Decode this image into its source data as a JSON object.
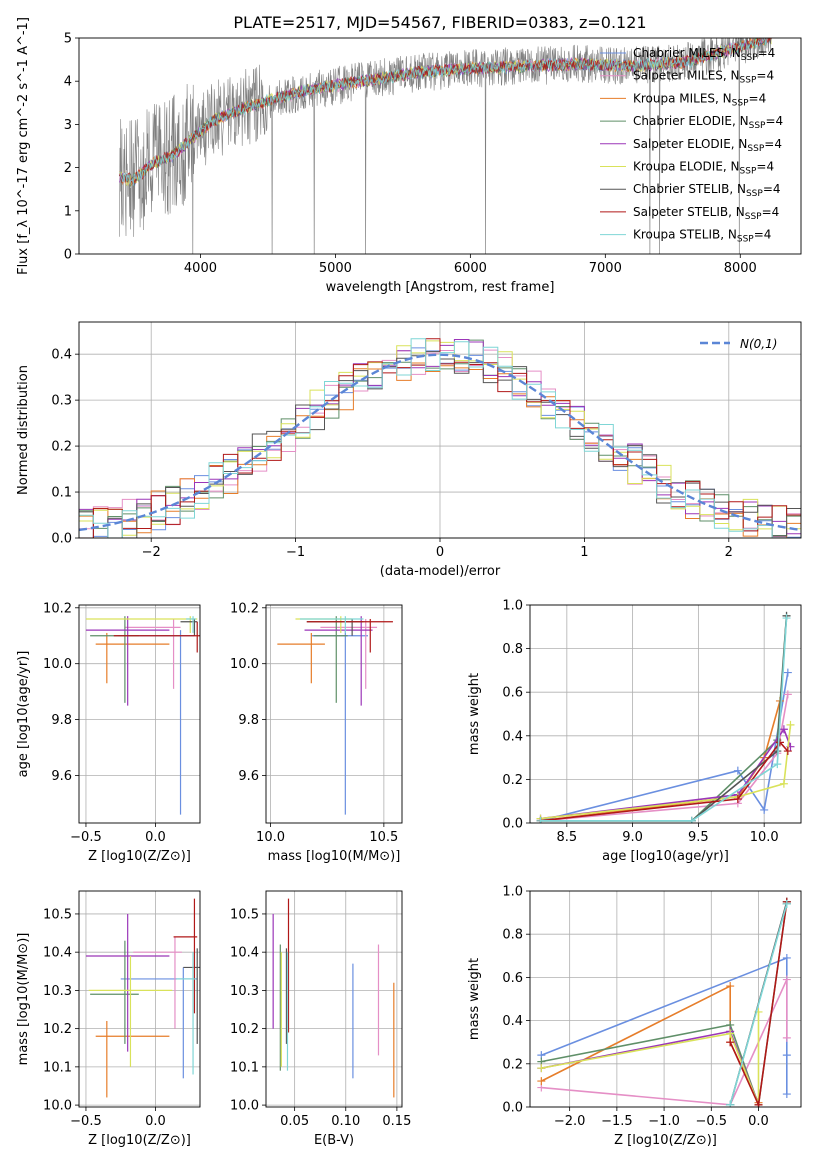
{
  "page_title": "PLATE=2517, MJD=54567, FIBERID=0383, z=0.121",
  "colors": {
    "Chabrier MILES": "#6a8fe0",
    "Salpeter MILES": "#e58fc6",
    "Kroupa MILES": "#e67d2a",
    "Chabrier ELODIE": "#5f8f68",
    "Salpeter ELODIE": "#9b36b8",
    "Kroupa ELODIE": "#d9e25a",
    "Chabrier STELIB": "#555555",
    "Salpeter STELIB": "#b01818",
    "Kroupa STELIB": "#7fd6d6",
    "gauss": "#5b86d6",
    "data": "#808080"
  },
  "chart_data": [
    {
      "type": "line",
      "title": "PLATE=2517, MJD=54567, FIBERID=0383, z=0.121",
      "xlabel": "wavelength [Angstrom, rest frame]",
      "ylabel": "Flux [f_λ 10^-17 erg cm^-2 s^-1 A^-1]",
      "xlim": [
        3100,
        8450
      ],
      "ylim": [
        0,
        5
      ],
      "xticks": [
        4000,
        5000,
        6000,
        7000,
        8000
      ],
      "yticks": [
        0,
        1,
        2,
        3,
        4,
        5
      ],
      "legend": "upper right",
      "series": [
        {
          "name": "Chabrier MILES, N_SSP=4"
        },
        {
          "name": "Salpeter MILES, N_SSP=4"
        },
        {
          "name": "Kroupa MILES, N_SSP=4"
        },
        {
          "name": "Chabrier ELODIE, N_SSP=4"
        },
        {
          "name": "Salpeter ELODIE, N_SSP=4"
        },
        {
          "name": "Kroupa ELODIE, N_SSP=4"
        },
        {
          "name": "Chabrier STELIB, N_SSP=4"
        },
        {
          "name": "Salpeter STELIB, N_SSP=4"
        },
        {
          "name": "Kroupa STELIB, N_SSP=4"
        }
      ],
      "continuum": {
        "x": [
          3400,
          3500,
          3650,
          3800,
          3950,
          4100,
          4300,
          4500,
          4800,
          5200,
          5600,
          6000,
          6400,
          6800,
          7200,
          7600,
          8000,
          8200
        ],
        "y": [
          1.8,
          1.7,
          2.1,
          2.3,
          2.7,
          3.1,
          3.35,
          3.55,
          3.8,
          4.0,
          4.2,
          4.3,
          4.35,
          4.4,
          4.35,
          4.45,
          4.8,
          5.0
        ]
      }
    },
    {
      "type": "step",
      "xlabel": "(data-model)/error",
      "ylabel": "Normed distribution",
      "xlim": [
        -2.5,
        2.5
      ],
      "ylim": [
        0,
        0.47
      ],
      "xticks": [
        -2,
        -1,
        0,
        1,
        2
      ],
      "yticks": [
        0.0,
        0.1,
        0.2,
        0.3,
        0.4
      ],
      "legend": "upper right",
      "gauss_label": "N(0,1)",
      "gauss": {
        "mu": 0,
        "sigma": 1
      }
    },
    {
      "type": "errorbar",
      "xlabel": "Z [log10(Z/Z⊙)]",
      "ylabel": "age  [log10(age/yr)]",
      "xlim": [
        -0.55,
        0.32
      ],
      "ylim": [
        9.43,
        10.21
      ],
      "xticks": [
        -0.5,
        0.0
      ],
      "yticks": [
        9.6,
        9.8,
        10.0,
        10.2
      ],
      "points": [
        {
          "m": "Chabrier MILES",
          "x": 0.18,
          "y": 10.1,
          "xe": [
            0.45,
            0.1
          ],
          "ye": [
            0.64,
            0.02
          ]
        },
        {
          "m": "Salpeter MILES",
          "x": 0.13,
          "y": 10.13,
          "xe": [
            0.35,
            0.05
          ],
          "ye": [
            0.22,
            0.03
          ]
        },
        {
          "m": "Kroupa MILES",
          "x": -0.35,
          "y": 10.07,
          "xe": [
            0.08,
            0.45
          ],
          "ye": [
            0.14,
            0.04
          ]
        },
        {
          "m": "Chabrier ELODIE",
          "x": -0.22,
          "y": 10.1,
          "xe": [
            0.25,
            0.1
          ],
          "ye": [
            0.24,
            0.07
          ]
        },
        {
          "m": "Salpeter ELODIE",
          "x": -0.2,
          "y": 10.12,
          "xe": [
            0.3,
            0.3
          ],
          "ye": [
            0.27,
            0.05
          ]
        },
        {
          "m": "Kroupa ELODIE",
          "x": 0.25,
          "y": 10.16,
          "xe": [
            0.75,
            0.05
          ],
          "ye": [
            0.05,
            0.01
          ]
        },
        {
          "m": "Chabrier STELIB",
          "x": 0.28,
          "y": 10.15,
          "xe": [
            0.1,
            0.02
          ],
          "ye": [
            0.05,
            0.01
          ]
        },
        {
          "m": "Salpeter STELIB",
          "x": 0.3,
          "y": 10.1,
          "xe": [
            0.6,
            0.02
          ],
          "ye": [
            0.06,
            0.05
          ]
        },
        {
          "m": "Kroupa STELIB",
          "x": 0.27,
          "y": 10.16,
          "xe": [
            0.05,
            0.02
          ],
          "ye": [
            0.05,
            0.01
          ]
        }
      ]
    },
    {
      "type": "errorbar",
      "xlabel": "mass [log10(M/M⊙)]",
      "xlim": [
        9.98,
        10.58
      ],
      "ylim": [
        9.43,
        10.21
      ],
      "xticks": [
        10.0,
        10.5
      ],
      "yticks": [
        9.6,
        9.8,
        10.0,
        10.2
      ],
      "points": [
        {
          "m": "Chabrier MILES",
          "x": 10.33,
          "y": 10.1,
          "xe": [
            0.15,
            0.1
          ],
          "ye": [
            0.64,
            0.02
          ]
        },
        {
          "m": "Salpeter MILES",
          "x": 10.42,
          "y": 10.13,
          "xe": [
            0.2,
            0.05
          ],
          "ye": [
            0.22,
            0.03
          ]
        },
        {
          "m": "Kroupa MILES",
          "x": 10.18,
          "y": 10.07,
          "xe": [
            0.15,
            0.06
          ],
          "ye": [
            0.14,
            0.04
          ]
        },
        {
          "m": "Chabrier ELODIE",
          "x": 10.29,
          "y": 10.1,
          "xe": [
            0.1,
            0.05
          ],
          "ye": [
            0.24,
            0.07
          ]
        },
        {
          "m": "Salpeter ELODIE",
          "x": 10.4,
          "y": 10.12,
          "xe": [
            0.25,
            0.05
          ],
          "ye": [
            0.27,
            0.05
          ]
        },
        {
          "m": "Kroupa ELODIE",
          "x": 10.31,
          "y": 10.16,
          "xe": [
            0.2,
            0.05
          ],
          "ye": [
            0.05,
            0.01
          ]
        },
        {
          "m": "Chabrier STELIB",
          "x": 10.36,
          "y": 10.15,
          "xe": [
            0.2,
            0.05
          ],
          "ye": [
            0.05,
            0.01
          ]
        },
        {
          "m": "Salpeter STELIB",
          "x": 10.44,
          "y": 10.15,
          "xe": [
            0.28,
            0.1
          ],
          "ye": [
            0.11,
            0.01
          ]
        },
        {
          "m": "Kroupa STELIB",
          "x": 10.33,
          "y": 10.16,
          "xe": [
            0.2,
            0.08
          ],
          "ye": [
            0.05,
            0.01
          ]
        }
      ]
    },
    {
      "type": "line",
      "xlabel": "age  [log10(age/yr)]",
      "ylabel": "mass weight",
      "xlim": [
        8.22,
        10.28
      ],
      "ylim": [
        0,
        1.0
      ],
      "xticks": [
        8.5,
        9.0,
        9.5,
        10.0
      ],
      "yticks": [
        0.0,
        0.2,
        0.4,
        0.6,
        0.8,
        1.0
      ],
      "series": [
        {
          "m": "Chabrier MILES",
          "x": [
            8.3,
            9.8,
            10.0,
            10.18
          ],
          "y": [
            0.01,
            0.24,
            0.06,
            0.69
          ]
        },
        {
          "m": "Salpeter MILES",
          "x": [
            8.3,
            9.8,
            10.1,
            10.18
          ],
          "y": [
            0.01,
            0.09,
            0.32,
            0.59
          ]
        },
        {
          "m": "Kroupa MILES",
          "x": [
            8.3,
            9.8,
            10.0,
            10.12
          ],
          "y": [
            0.01,
            0.12,
            0.3,
            0.56
          ]
        },
        {
          "m": "Chabrier ELODIE",
          "x": [
            8.3,
            9.45,
            10.1,
            10.17
          ],
          "y": [
            0.01,
            0.01,
            0.38,
            0.95
          ]
        },
        {
          "m": "Salpeter ELODIE",
          "x": [
            8.3,
            9.8,
            10.15,
            10.2
          ],
          "y": [
            0.02,
            0.13,
            0.43,
            0.35
          ]
        },
        {
          "m": "Kroupa ELODIE",
          "x": [
            8.3,
            9.8,
            10.15,
            10.2
          ],
          "y": [
            0.02,
            0.12,
            0.18,
            0.45
          ]
        },
        {
          "m": "Chabrier STELIB",
          "x": [
            8.3,
            9.45,
            10.1,
            10.17
          ],
          "y": [
            0.01,
            0.01,
            0.33,
            0.95
          ]
        },
        {
          "m": "Salpeter STELIB",
          "x": [
            8.3,
            9.8,
            10.12,
            10.18
          ],
          "y": [
            0.01,
            0.11,
            0.37,
            0.33
          ]
        },
        {
          "m": "Kroupa STELIB",
          "x": [
            8.3,
            9.45,
            10.1,
            10.17
          ],
          "y": [
            0.01,
            0.01,
            0.27,
            0.94
          ]
        }
      ]
    },
    {
      "type": "errorbar",
      "xlabel": "Z [log10(Z/Z⊙)]",
      "ylabel": "mass [log10(M/M⊙)]",
      "xlim": [
        -0.55,
        0.32
      ],
      "ylim": [
        9.995,
        10.56
      ],
      "xticks": [
        -0.5,
        0.0
      ],
      "yticks": [
        10.0,
        10.1,
        10.2,
        10.3,
        10.4,
        10.5
      ],
      "points": [
        {
          "m": "Chabrier MILES",
          "x": 0.2,
          "y": 10.33,
          "xe": [
            0.45,
            0.1
          ],
          "ye": [
            0.26,
            0.03
          ]
        },
        {
          "m": "Salpeter MILES",
          "x": 0.14,
          "y": 10.4,
          "xe": [
            0.3,
            0.05
          ],
          "ye": [
            0.2,
            0.04
          ]
        },
        {
          "m": "Kroupa MILES",
          "x": -0.35,
          "y": 10.18,
          "xe": [
            0.08,
            0.45
          ],
          "ye": [
            0.16,
            0.04
          ]
        },
        {
          "m": "Chabrier ELODIE",
          "x": -0.22,
          "y": 10.29,
          "xe": [
            0.25,
            0.1
          ],
          "ye": [
            0.13,
            0.14
          ]
        },
        {
          "m": "Salpeter ELODIE",
          "x": -0.2,
          "y": 10.39,
          "xe": [
            0.3,
            0.3
          ],
          "ye": [
            0.25,
            0.11
          ]
        },
        {
          "m": "Kroupa ELODIE",
          "x": -0.18,
          "y": 10.3,
          "xe": [
            0.3,
            0.3
          ],
          "ye": [
            0.2,
            0.09
          ]
        },
        {
          "m": "Chabrier STELIB",
          "x": 0.3,
          "y": 10.36,
          "xe": [
            0.1,
            0.02
          ],
          "ye": [
            0.2,
            0.05
          ]
        },
        {
          "m": "Salpeter STELIB",
          "x": 0.28,
          "y": 10.44,
          "xe": [
            0.15,
            0.02
          ],
          "ye": [
            0.2,
            0.1
          ]
        },
        {
          "m": "Kroupa STELIB",
          "x": 0.27,
          "y": 10.33,
          "xe": [
            0.12,
            0.02
          ],
          "ye": [
            0.25,
            0.07
          ]
        }
      ]
    },
    {
      "type": "errorbar",
      "xlabel": "E(B-V)",
      "xlim": [
        0.022,
        0.155
      ],
      "ylim": [
        9.995,
        10.56
      ],
      "xticks": [
        0.05,
        0.1,
        0.15
      ],
      "yticks": [
        10.0,
        10.1,
        10.2,
        10.3,
        10.4,
        10.5
      ],
      "points": [
        {
          "m": "Chabrier MILES",
          "x": 0.107,
          "y": 10.33,
          "ye": [
            0.26,
            0.04
          ]
        },
        {
          "m": "Salpeter MILES",
          "x": 0.132,
          "y": 10.4,
          "ye": [
            0.27,
            0.02
          ]
        },
        {
          "m": "Kroupa MILES",
          "x": 0.147,
          "y": 10.18,
          "ye": [
            0.16,
            0.14
          ]
        },
        {
          "m": "Chabrier ELODIE",
          "x": 0.036,
          "y": 10.29,
          "ye": [
            0.2,
            0.13
          ]
        },
        {
          "m": "Salpeter ELODIE",
          "x": 0.029,
          "y": 10.39,
          "ye": [
            0.19,
            0.11
          ]
        },
        {
          "m": "Kroupa ELODIE",
          "x": 0.037,
          "y": 10.3,
          "ye": [
            0.2,
            0.1
          ]
        },
        {
          "m": "Chabrier STELIB",
          "x": 0.042,
          "y": 10.36,
          "ye": [
            0.2,
            0.05
          ]
        },
        {
          "m": "Salpeter STELIB",
          "x": 0.044,
          "y": 10.44,
          "ye": [
            0.25,
            0.1
          ]
        },
        {
          "m": "Kroupa STELIB",
          "x": 0.043,
          "y": 10.33,
          "ye": [
            0.24,
            0.07
          ]
        }
      ]
    },
    {
      "type": "line",
      "xlabel": "Z [log10(Z/Z⊙)]",
      "ylabel": "mass weight",
      "xlim": [
        -2.42,
        0.45
      ],
      "ylim": [
        0,
        1.0
      ],
      "xticks": [
        -2.0,
        -1.5,
        -1.0,
        -0.5,
        0.0
      ],
      "yticks": [
        0.0,
        0.2,
        0.4,
        0.6,
        0.8,
        1.0
      ],
      "series": [
        {
          "m": "Chabrier MILES",
          "x": [
            -2.3,
            0.3,
            0.3,
            0.3
          ],
          "y": [
            0.24,
            0.69,
            0.24,
            0.06
          ]
        },
        {
          "m": "Salpeter MILES",
          "x": [
            -2.3,
            -0.3,
            0.3,
            0.3
          ],
          "y": [
            0.09,
            0.01,
            0.59,
            0.32
          ]
        },
        {
          "m": "Kroupa MILES",
          "x": [
            -2.3,
            -0.3,
            -0.3,
            0.0
          ],
          "y": [
            0.12,
            0.56,
            0.3,
            0.02
          ]
        },
        {
          "m": "Chabrier ELODIE",
          "x": [
            -2.3,
            -0.3,
            0.0,
            0.3
          ],
          "y": [
            0.21,
            0.38,
            0.01,
            0.95
          ]
        },
        {
          "m": "Salpeter ELODIE",
          "x": [
            -2.3,
            -0.3,
            0.0,
            0.0
          ],
          "y": [
            0.18,
            0.35,
            0.01,
            0.01
          ]
        },
        {
          "m": "Kroupa ELODIE",
          "x": [
            -2.3,
            -0.3,
            0.0,
            0.0
          ],
          "y": [
            0.18,
            0.34,
            0.01,
            0.44
          ]
        },
        {
          "m": "Chabrier STELIB",
          "x": [
            -0.3,
            -0.3,
            0.3,
            0.3
          ],
          "y": [
            0.01,
            0.01,
            0.95,
            0.94
          ]
        },
        {
          "m": "Salpeter STELIB",
          "x": [
            -0.3,
            0.0,
            0.3,
            0.3
          ],
          "y": [
            0.3,
            0.01,
            0.95,
            0.94
          ]
        },
        {
          "m": "Kroupa STELIB",
          "x": [
            -0.3,
            -0.3,
            0.3,
            0.3
          ],
          "y": [
            0.01,
            0.01,
            0.94,
            0.94
          ]
        }
      ]
    }
  ]
}
